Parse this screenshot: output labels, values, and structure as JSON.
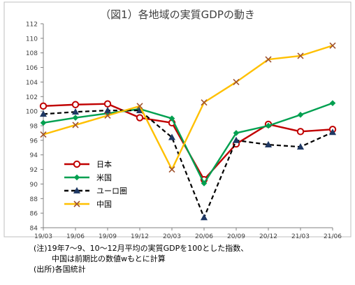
{
  "chart_data": {
    "type": "line",
    "title": "（図1）各地域の実質GDPの動き",
    "categories": [
      "19/03",
      "19/06",
      "19/09",
      "19/12",
      "20/03",
      "20/06",
      "20/09",
      "20/12",
      "21/03",
      "21/06"
    ],
    "ylim": [
      84,
      112
    ],
    "yticks": [
      84,
      86,
      88,
      90,
      92,
      94,
      96,
      98,
      100,
      102,
      104,
      106,
      108,
      110,
      112
    ],
    "grid": false,
    "legend_placement": "bottom-left",
    "series": [
      {
        "name": "日本",
        "color": "#c00000",
        "marker": "circle",
        "dash": false,
        "values": [
          100.7,
          100.9,
          101.0,
          99.1,
          98.4,
          90.6,
          95.5,
          98.2,
          97.2,
          97.5
        ]
      },
      {
        "name": "米国",
        "color": "#00a050",
        "marker": "diamond",
        "dash": false,
        "values": [
          98.4,
          99.1,
          99.7,
          100.3,
          99.0,
          90.1,
          97.0,
          98.0,
          99.5,
          101.1
        ]
      },
      {
        "name": "ユーロ圏",
        "color": "#000000",
        "marker": "triangle",
        "dash": true,
        "values": [
          99.6,
          99.9,
          100.1,
          100.1,
          96.4,
          85.4,
          96.0,
          95.4,
          95.1,
          97.1
        ]
      },
      {
        "name": "中国",
        "color": "#ffc000",
        "marker": "x",
        "dash": false,
        "values": [
          96.8,
          98.1,
          99.4,
          100.7,
          92.0,
          101.2,
          104.0,
          107.1,
          107.6,
          109.0
        ]
      }
    ]
  },
  "notes": {
    "line1": "(注)19年7～9、10～12月平均の実質GDPを100とした指数、",
    "line2": "中国は前期比の数値wもとに計算",
    "line3": "(出所)各国統計"
  }
}
